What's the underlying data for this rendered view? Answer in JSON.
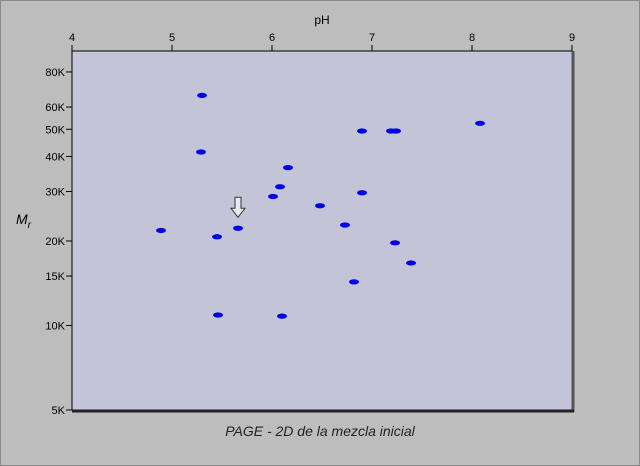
{
  "caption": "PAGE - 2D de la mezcla inicial",
  "chart_data": {
    "type": "scatter",
    "title": "",
    "xlabel": "pH",
    "ylabel": "Mr",
    "ylabel_main": "M",
    "ylabel_sub": "r",
    "x_axis_position": "top",
    "y_scale": "log",
    "xlim": [
      4,
      9
    ],
    "ylim": [
      5000,
      95000
    ],
    "x_ticks": [
      4,
      5,
      6,
      7,
      8,
      9
    ],
    "x_tick_labels": [
      "4",
      "5",
      "6",
      "7",
      "8",
      "9"
    ],
    "y_ticks": [
      5000,
      10000,
      15000,
      20000,
      30000,
      40000,
      50000,
      60000,
      80000
    ],
    "y_tick_labels": [
      "5K",
      "10K",
      "15K",
      "20K",
      "30K",
      "40K",
      "50K",
      "60K",
      "80K"
    ],
    "grid": false,
    "colors": {
      "plot_bg": "#c4c4d8",
      "spot": "#0000ee",
      "page_bg": "#bdbdbd"
    },
    "points": [
      {
        "x": 5.3,
        "y": 66000
      },
      {
        "x": 5.29,
        "y": 41500
      },
      {
        "x": 4.89,
        "y": 21800
      },
      {
        "x": 5.45,
        "y": 20700
      },
      {
        "x": 5.66,
        "y": 22200
      },
      {
        "x": 5.46,
        "y": 10900
      },
      {
        "x": 6.16,
        "y": 36500
      },
      {
        "x": 6.08,
        "y": 31200
      },
      {
        "x": 6.01,
        "y": 28800
      },
      {
        "x": 6.48,
        "y": 26700
      },
      {
        "x": 6.1,
        "y": 10800
      },
      {
        "x": 6.9,
        "y": 49300
      },
      {
        "x": 6.9,
        "y": 29700
      },
      {
        "x": 6.73,
        "y": 22800
      },
      {
        "x": 7.19,
        "y": 49300
      },
      {
        "x": 7.24,
        "y": 49300
      },
      {
        "x": 7.23,
        "y": 19700
      },
      {
        "x": 7.39,
        "y": 16700
      },
      {
        "x": 6.82,
        "y": 14300
      },
      {
        "x": 8.08,
        "y": 52500
      }
    ],
    "annotations": [
      {
        "type": "arrow",
        "direction": "down",
        "target": {
          "x": 5.66,
          "y": 22200
        }
      }
    ]
  }
}
